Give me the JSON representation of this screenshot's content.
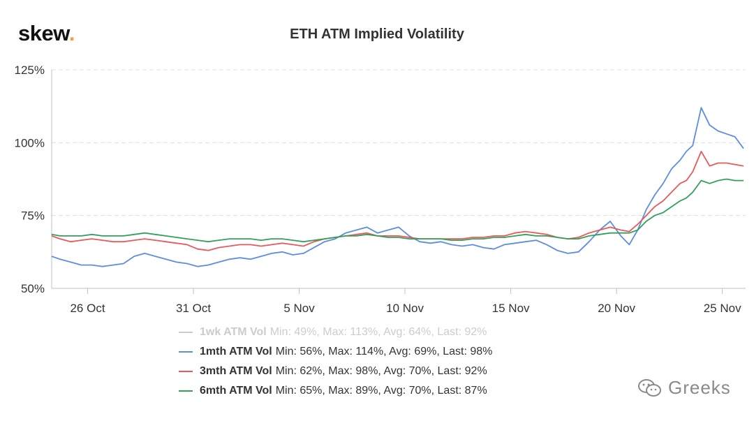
{
  "logo": {
    "text": "skew",
    "dot": "."
  },
  "watermark": {
    "text": "Greeks",
    "icon": "wechat-icon"
  },
  "chart_data": {
    "type": "line",
    "title": "ETH ATM Implied Volatility",
    "xlabel": "",
    "ylabel": "",
    "ylim": [
      50,
      125
    ],
    "yticks": [
      "50%",
      "75%",
      "100%",
      "125%"
    ],
    "ytick_values": [
      50,
      75,
      100,
      125
    ],
    "xticks": [
      "26 Oct",
      "31 Oct",
      "5 Nov",
      "10 Nov",
      "15 Nov",
      "20 Nov",
      "25 Nov"
    ],
    "xtick_days": [
      26,
      31,
      36,
      41,
      46,
      51,
      56
    ],
    "xlim_days": [
      24.3,
      57.1
    ],
    "grid": "horizontal dashed",
    "legend_position": "bottom",
    "series": [
      {
        "name": "1wk ATM Vol",
        "stats": "Min: 49%, Max: 113%, Avg: 64%, Last: 92%",
        "color": "#cccccc",
        "visible": false,
        "x": [],
        "values": []
      },
      {
        "name": "1mth ATM Vol",
        "stats": "Min: 56%, Max: 114%, Avg: 69%, Last: 98%",
        "color": "#5b8ee0",
        "visible": true,
        "x": [
          24.3,
          24.7,
          25.2,
          25.7,
          26.2,
          26.7,
          27.2,
          27.7,
          28.2,
          28.7,
          29.2,
          29.7,
          30.2,
          30.7,
          31.2,
          31.7,
          32.2,
          32.7,
          33.2,
          33.7,
          34.2,
          34.7,
          35.2,
          35.7,
          36.2,
          36.7,
          37.2,
          37.7,
          38.2,
          38.7,
          39.2,
          39.7,
          40.2,
          40.7,
          41.2,
          41.7,
          42.2,
          42.7,
          43.2,
          43.7,
          44.2,
          44.7,
          45.2,
          45.7,
          46.2,
          46.7,
          47.2,
          47.7,
          48.2,
          48.7,
          49.2,
          49.7,
          50.2,
          50.7,
          51.2,
          51.6,
          52.0,
          52.4,
          52.8,
          53.2,
          53.6,
          54.0,
          54.3,
          54.6,
          55.0,
          55.4,
          55.8,
          56.2,
          56.6,
          57.0
        ],
        "values": [
          61,
          60,
          59,
          58,
          58,
          57.5,
          58,
          58.5,
          61,
          62,
          61,
          60,
          59,
          58.5,
          57.5,
          58,
          59,
          60,
          60.5,
          60,
          61,
          62,
          62.5,
          61.5,
          62,
          64,
          66,
          67,
          69,
          70,
          71,
          69,
          70,
          71,
          68,
          66,
          65.5,
          66,
          65,
          64.5,
          65,
          64,
          63.5,
          65,
          65.5,
          66,
          66.5,
          65,
          63,
          62,
          62.5,
          66,
          70,
          73,
          68,
          65,
          70,
          77,
          82,
          86,
          91,
          94,
          97,
          99,
          112,
          106,
          104,
          103,
          102,
          98
        ]
      },
      {
        "name": "3mth ATM Vol",
        "stats": "Min: 62%, Max: 98%, Avg: 70%, Last: 92%",
        "color": "#e85a5a",
        "visible": true,
        "x": [
          24.3,
          24.7,
          25.2,
          25.7,
          26.2,
          26.7,
          27.2,
          27.7,
          28.2,
          28.7,
          29.2,
          29.7,
          30.2,
          30.7,
          31.2,
          31.7,
          32.2,
          32.7,
          33.2,
          33.7,
          34.2,
          34.7,
          35.2,
          35.7,
          36.2,
          36.7,
          37.2,
          37.7,
          38.2,
          38.7,
          39.2,
          39.7,
          40.2,
          40.7,
          41.2,
          41.7,
          42.2,
          42.7,
          43.2,
          43.7,
          44.2,
          44.7,
          45.2,
          45.7,
          46.2,
          46.7,
          47.2,
          47.7,
          48.2,
          48.7,
          49.2,
          49.7,
          50.2,
          50.7,
          51.2,
          51.6,
          52.0,
          52.4,
          52.8,
          53.2,
          53.6,
          54.0,
          54.3,
          54.6,
          55.0,
          55.4,
          55.8,
          56.2,
          56.6,
          57.0
        ],
        "values": [
          68,
          67,
          66,
          66.5,
          67,
          66.5,
          66,
          66,
          66.5,
          67,
          66.5,
          66,
          65.5,
          65,
          63.5,
          63,
          64,
          64.5,
          65,
          65,
          64.5,
          65,
          65.5,
          65,
          64.5,
          66,
          67,
          67.5,
          68,
          68.5,
          69,
          68,
          68,
          68,
          67.5,
          67,
          67,
          67,
          67,
          67,
          67.5,
          67.5,
          68,
          68,
          69,
          69.5,
          69,
          68.5,
          67.5,
          67,
          67.5,
          69,
          70,
          71,
          70,
          69.5,
          72,
          75,
          78,
          80,
          83,
          86,
          87,
          90,
          97,
          92,
          93,
          93,
          92.5,
          92
        ]
      },
      {
        "name": "6mth ATM Vol",
        "stats": "Min: 65%, Max: 89%, Avg: 70%, Last: 87%",
        "color": "#33a05a",
        "visible": true,
        "x": [
          24.3,
          24.7,
          25.2,
          25.7,
          26.2,
          26.7,
          27.2,
          27.7,
          28.2,
          28.7,
          29.2,
          29.7,
          30.2,
          30.7,
          31.2,
          31.7,
          32.2,
          32.7,
          33.2,
          33.7,
          34.2,
          34.7,
          35.2,
          35.7,
          36.2,
          36.7,
          37.2,
          37.7,
          38.2,
          38.7,
          39.2,
          39.7,
          40.2,
          40.7,
          41.2,
          41.7,
          42.2,
          42.7,
          43.2,
          43.7,
          44.2,
          44.7,
          45.2,
          45.7,
          46.2,
          46.7,
          47.2,
          47.7,
          48.2,
          48.7,
          49.2,
          49.7,
          50.2,
          50.7,
          51.2,
          51.6,
          52.0,
          52.4,
          52.8,
          53.2,
          53.6,
          54.0,
          54.3,
          54.6,
          55.0,
          55.4,
          55.8,
          56.2,
          56.6,
          57.0
        ],
        "values": [
          68.5,
          68,
          68,
          68,
          68.5,
          68,
          68,
          68,
          68.5,
          69,
          68.5,
          68,
          67.5,
          67,
          66.5,
          66,
          66.5,
          67,
          67,
          67,
          66.5,
          67,
          67,
          66.5,
          66,
          66.5,
          67,
          67.5,
          68,
          68,
          68.5,
          68,
          67.5,
          67.5,
          67,
          67,
          67,
          67,
          66.5,
          66.5,
          67,
          67,
          67.5,
          67.5,
          68,
          68.5,
          68,
          68,
          67.5,
          67,
          67,
          68,
          68.5,
          69,
          69,
          69,
          70,
          73,
          75,
          76,
          78,
          80,
          81,
          83,
          87,
          86,
          87,
          87.5,
          87,
          87
        ]
      }
    ]
  }
}
